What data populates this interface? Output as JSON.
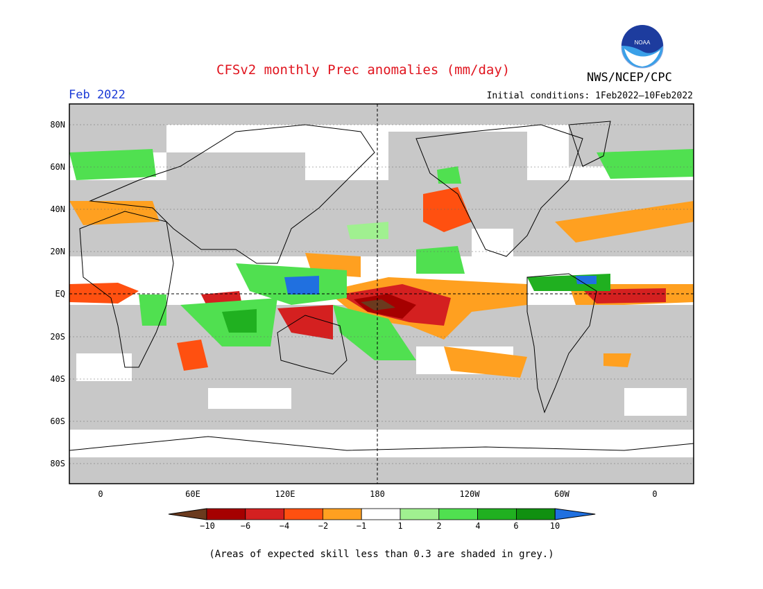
{
  "header": {
    "title": "CFSv2 monthly Prec anomalies (mm/day)",
    "org": "NWS/NCEP/CPC",
    "month": "Feb 2022",
    "init_conditions": "Initial conditions: 1Feb2022–10Feb2022",
    "logo_text": "NOAA"
  },
  "axes": {
    "lat_labels": [
      "80N",
      "60N",
      "40N",
      "20N",
      "EQ",
      "20S",
      "40S",
      "60S",
      "80S"
    ],
    "lon_labels": [
      "0",
      "60E",
      "120E",
      "180",
      "120W",
      "60W",
      "0"
    ]
  },
  "colorbar": {
    "labels": [
      "−10",
      "−6",
      "−4",
      "−2",
      "−1",
      "1",
      "2",
      "4",
      "6",
      "10"
    ],
    "colors": [
      "#6b3a1e",
      "#a50000",
      "#d42020",
      "#ff5010",
      "#ffa020",
      "#ffffff",
      "#a0f090",
      "#50e050",
      "#20b020",
      "#109010",
      "#2070e0"
    ]
  },
  "note": "(Areas of expected skill less than 0.3 are shaded in grey.)",
  "colors": {
    "grey": "#c8c8c8",
    "title": "#e0141e",
    "month": "#1a3ad6"
  }
}
